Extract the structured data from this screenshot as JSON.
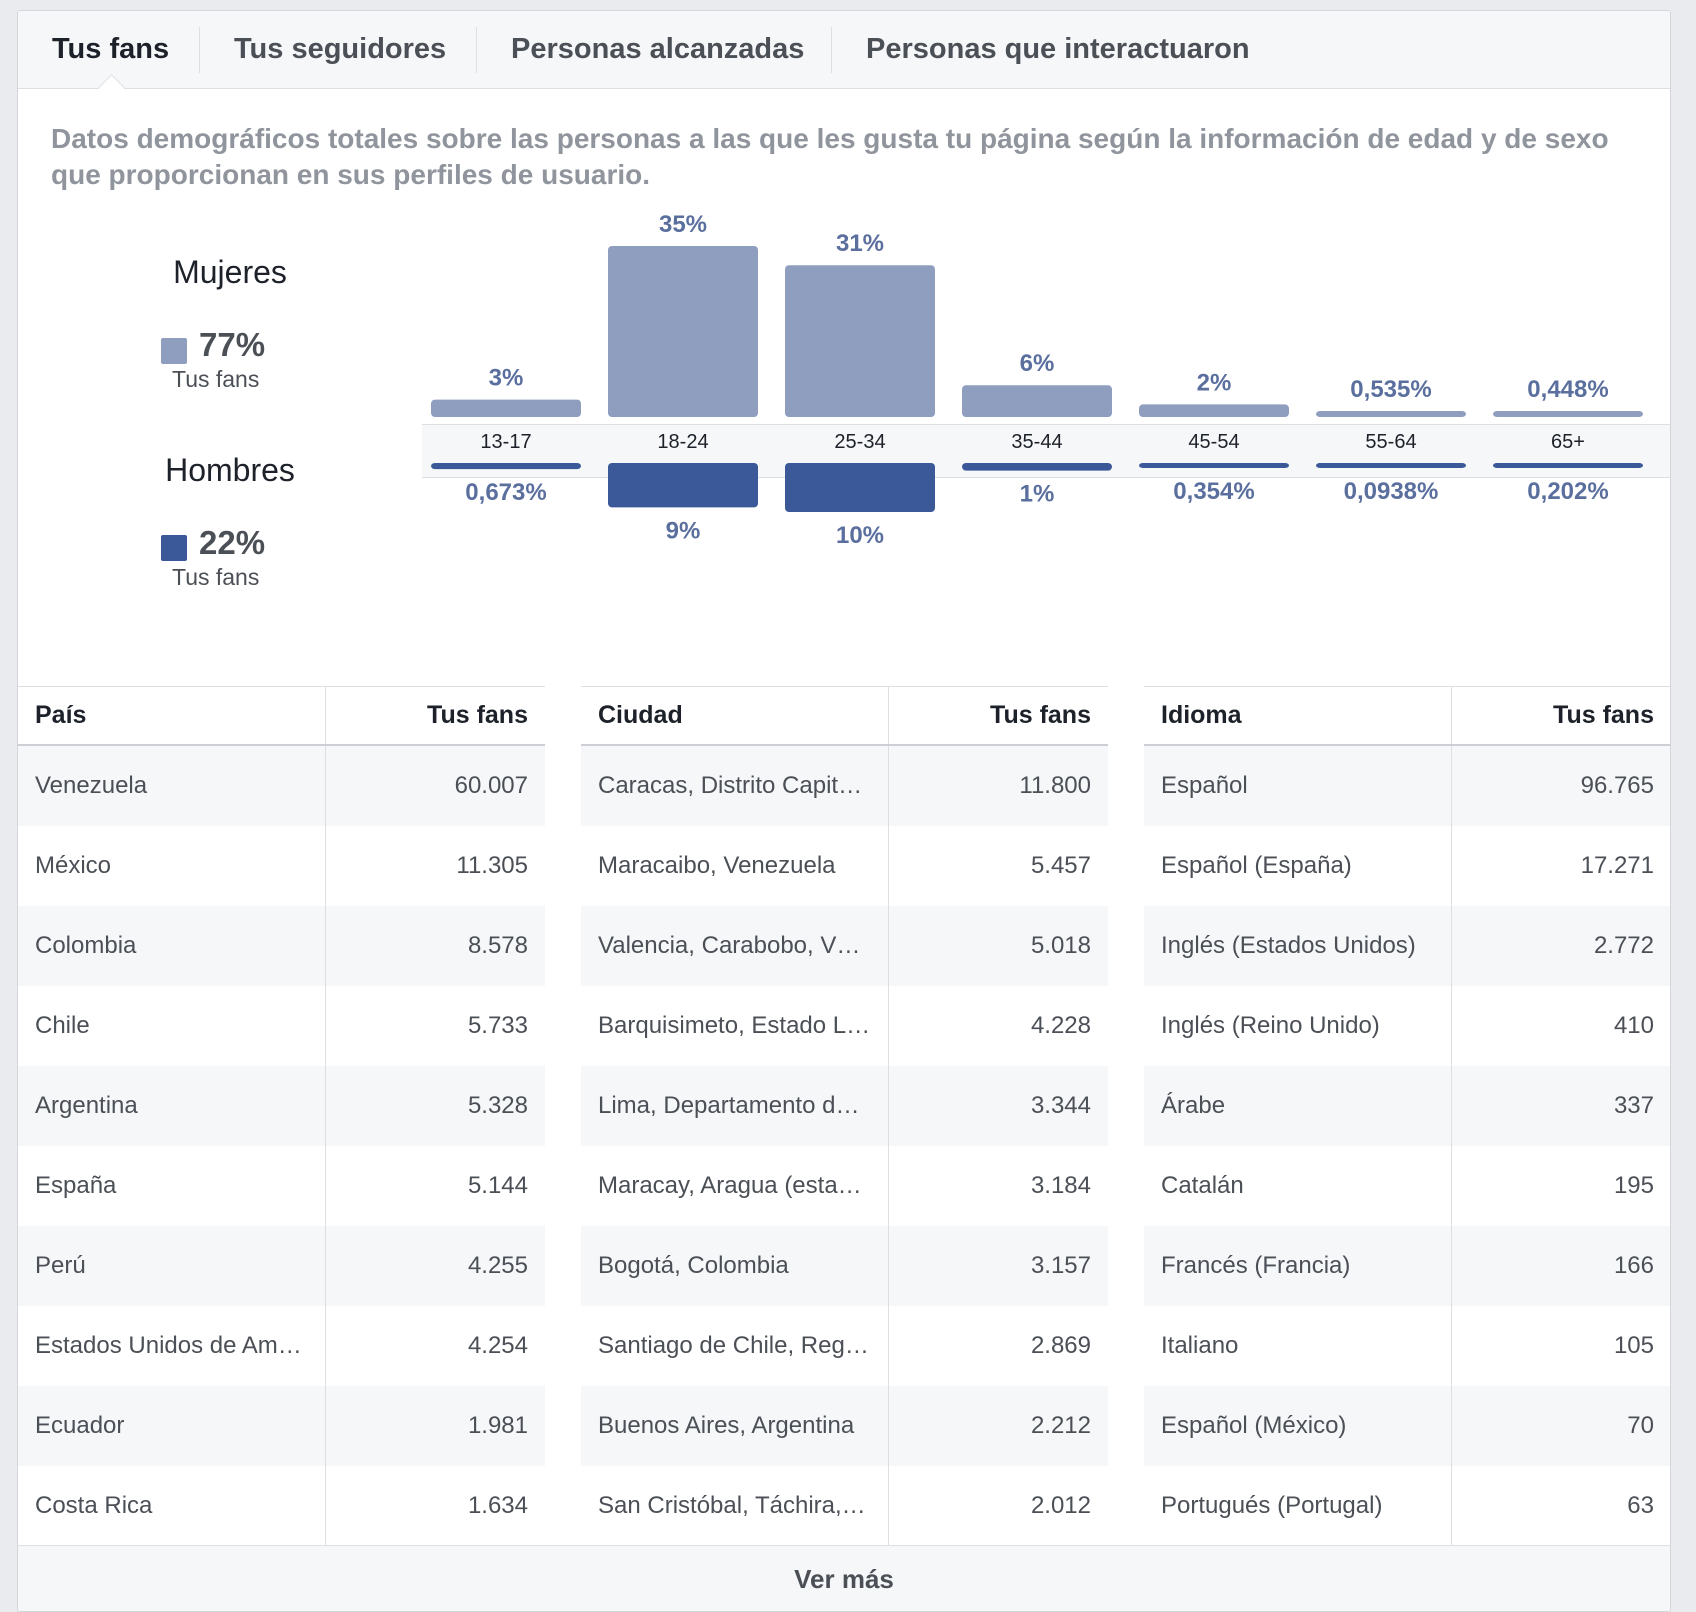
{
  "tabs": [
    {
      "label": "Tus fans",
      "active": true
    },
    {
      "label": "Tus seguidores",
      "active": false
    },
    {
      "label": "Personas alcanzadas",
      "active": false
    },
    {
      "label": "Personas que interactuaron",
      "active": false
    }
  ],
  "description": "Datos demográficos totales sobre las personas a las que les gusta tu página según la información de edad y de sexo que proporcionan en sus perfiles de usuario.",
  "legend": {
    "women": {
      "title": "Mujeres",
      "pct": "77%",
      "sub": "Tus fans",
      "color": "#8f9dbf"
    },
    "men": {
      "title": "Hombres",
      "pct": "22%",
      "sub": "Tus fans",
      "color": "#3b5998"
    }
  },
  "chart_data": {
    "type": "bar",
    "categories": [
      "13-17",
      "18-24",
      "25-34",
      "35-44",
      "45-54",
      "55-64",
      "65+"
    ],
    "series": [
      {
        "name": "Mujeres",
        "values": [
          3,
          35,
          31,
          6,
          2,
          0.535,
          0.448
        ],
        "labels": [
          "3%",
          "35%",
          "31%",
          "6%",
          "2%",
          "0,535%",
          "0,448%"
        ],
        "color": "#8f9dbf"
      },
      {
        "name": "Hombres",
        "values": [
          0.673,
          9,
          10,
          1,
          0.354,
          0.0938,
          0.202
        ],
        "labels": [
          "0,673%",
          "9%",
          "10%",
          "1%",
          "0,354%",
          "0,0938%",
          "0,202%"
        ],
        "color": "#3b5998"
      }
    ],
    "label_color": "#5a6f9e"
  },
  "tables": [
    {
      "header_name": "País",
      "header_value": "Tus fans",
      "rows": [
        {
          "name": "Venezuela",
          "value": "60.007"
        },
        {
          "name": "México",
          "value": "11.305"
        },
        {
          "name": "Colombia",
          "value": "8.578"
        },
        {
          "name": "Chile",
          "value": "5.733"
        },
        {
          "name": "Argentina",
          "value": "5.328"
        },
        {
          "name": "España",
          "value": "5.144"
        },
        {
          "name": "Perú",
          "value": "4.255"
        },
        {
          "name": "Estados Unidos de Am…",
          "value": "4.254"
        },
        {
          "name": "Ecuador",
          "value": "1.981"
        },
        {
          "name": "Costa Rica",
          "value": "1.634"
        }
      ]
    },
    {
      "header_name": "Ciudad",
      "header_value": "Tus fans",
      "rows": [
        {
          "name": "Caracas, Distrito Capit…",
          "value": "11.800"
        },
        {
          "name": "Maracaibo, Venezuela",
          "value": "5.457"
        },
        {
          "name": "Valencia, Carabobo, V…",
          "value": "5.018"
        },
        {
          "name": "Barquisimeto, Estado L…",
          "value": "4.228"
        },
        {
          "name": "Lima, Departamento d…",
          "value": "3.344"
        },
        {
          "name": "Maracay, Aragua (esta…",
          "value": "3.184"
        },
        {
          "name": "Bogotá, Colombia",
          "value": "3.157"
        },
        {
          "name": "Santiago de Chile, Reg…",
          "value": "2.869"
        },
        {
          "name": "Buenos Aires, Argentina",
          "value": "2.212"
        },
        {
          "name": "San Cristóbal, Táchira,…",
          "value": "2.012"
        }
      ]
    },
    {
      "header_name": "Idioma",
      "header_value": "Tus fans",
      "rows": [
        {
          "name": "Español",
          "value": "96.765"
        },
        {
          "name": "Español (España)",
          "value": "17.271"
        },
        {
          "name": "Inglés (Estados Unidos)",
          "value": "2.772"
        },
        {
          "name": "Inglés (Reino Unido)",
          "value": "410"
        },
        {
          "name": "Árabe",
          "value": "337"
        },
        {
          "name": "Catalán",
          "value": "195"
        },
        {
          "name": "Francés (Francia)",
          "value": "166"
        },
        {
          "name": "Italiano",
          "value": "105"
        },
        {
          "name": "Español (México)",
          "value": "70"
        },
        {
          "name": "Portugués (Portugal)",
          "value": "63"
        }
      ]
    }
  ],
  "more_button": "Ver más"
}
